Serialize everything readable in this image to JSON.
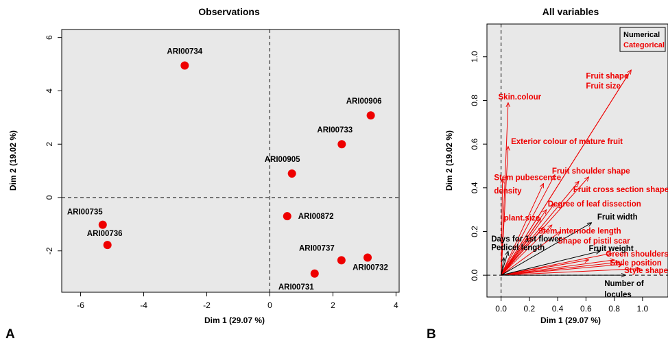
{
  "colors": {
    "panel_bg": "#e8e8e8",
    "point": "#ee0000",
    "numerical": "#000000",
    "categorical": "#ee0000"
  },
  "panel_letters": {
    "a": "A",
    "b": "B"
  },
  "chart_data": [
    {
      "type": "scatter",
      "title": "Observations",
      "xlabel": "Dim 1 (29.07 %)",
      "ylabel": "Dim 2 (19.02 %)",
      "xlim": [
        -6.6,
        4.1
      ],
      "ylim": [
        -3.55,
        6.3
      ],
      "xticks": [
        {
          "v": -6,
          "label": "-6"
        },
        {
          "v": -4,
          "label": "-4"
        },
        {
          "v": -2,
          "label": "-2"
        },
        {
          "v": 0,
          "label": "0"
        },
        {
          "v": 2,
          "label": "2"
        },
        {
          "v": 4,
          "label": "4"
        }
      ],
      "yticks": [
        {
          "v": -2,
          "label": "-2"
        },
        {
          "v": 0,
          "label": "0"
        },
        {
          "v": 2,
          "label": "2"
        },
        {
          "v": 4,
          "label": "4"
        },
        {
          "v": 6,
          "label": "6"
        }
      ],
      "points": [
        {
          "label": "ARI00734",
          "x": -2.7,
          "y": 4.95
        },
        {
          "label": "ARI00906",
          "x": 3.2,
          "y": 3.08
        },
        {
          "label": "ARI00733",
          "x": 2.28,
          "y": 2.0
        },
        {
          "label": "ARI00905",
          "x": 0.7,
          "y": 0.9
        },
        {
          "label": "ARI00872",
          "x": 0.55,
          "y": -0.7
        },
        {
          "label": "ARI00735",
          "x": -5.3,
          "y": -1.02
        },
        {
          "label": "ARI00736",
          "x": -5.15,
          "y": -1.78
        },
        {
          "label": "ARI00737",
          "x": 2.27,
          "y": -2.35
        },
        {
          "label": "ARI00732",
          "x": 3.1,
          "y": -2.25
        },
        {
          "label": "ARI00731",
          "x": 1.42,
          "y": -2.85
        }
      ]
    },
    {
      "type": "scatter",
      "title": "All variables",
      "xlabel": "Dim 1 (29.07 %)",
      "ylabel": "Dim 2 (19.02 %)",
      "xlim": [
        -0.1,
        1.18
      ],
      "ylim": [
        -0.1,
        1.15
      ],
      "xticks": [
        {
          "v": 0.0,
          "label": "0.0"
        },
        {
          "v": 0.2,
          "label": "0.2"
        },
        {
          "v": 0.4,
          "label": "0.4"
        },
        {
          "v": 0.6,
          "label": "0.6"
        },
        {
          "v": 0.8,
          "label": "0.8"
        },
        {
          "v": 1.0,
          "label": "1.0"
        }
      ],
      "yticks": [
        {
          "v": 0.0,
          "label": "0.0"
        },
        {
          "v": 0.2,
          "label": "0.2"
        },
        {
          "v": 0.4,
          "label": "0.4"
        },
        {
          "v": 0.6,
          "label": "0.6"
        },
        {
          "v": 0.8,
          "label": "0.8"
        },
        {
          "v": 1.0,
          "label": "1.0"
        }
      ],
      "legend": {
        "position": "top-right",
        "entries": [
          "Numerical",
          "Categorical"
        ]
      },
      "arrows": [
        {
          "kind": "categorical",
          "x": 0.92,
          "y": 0.94
        },
        {
          "kind": "categorical",
          "x": 0.9,
          "y": 0.92
        },
        {
          "kind": "categorical",
          "x": 0.05,
          "y": 0.79
        },
        {
          "kind": "categorical",
          "x": 0.05,
          "y": 0.59
        },
        {
          "kind": "categorical",
          "x": 0.01,
          "y": 0.44
        },
        {
          "kind": "categorical",
          "x": 0.38,
          "y": 0.46
        },
        {
          "kind": "categorical",
          "x": 0.3,
          "y": 0.42
        },
        {
          "kind": "categorical",
          "x": 0.62,
          "y": 0.45
        },
        {
          "kind": "categorical",
          "x": 0.55,
          "y": 0.43
        },
        {
          "kind": "categorical",
          "x": 0.38,
          "y": 0.33
        },
        {
          "kind": "categorical",
          "x": 0.32,
          "y": 0.3
        },
        {
          "kind": "categorical",
          "x": 0.28,
          "y": 0.26
        },
        {
          "kind": "categorical",
          "x": 0.36,
          "y": 0.23
        },
        {
          "kind": "categorical",
          "x": 0.3,
          "y": 0.22
        },
        {
          "kind": "categorical",
          "x": 0.42,
          "y": 0.2
        },
        {
          "kind": "categorical",
          "x": 0.2,
          "y": 0.17
        },
        {
          "kind": "categorical",
          "x": 0.78,
          "y": 0.1
        },
        {
          "kind": "categorical",
          "x": 0.8,
          "y": 0.07
        },
        {
          "kind": "categorical",
          "x": 0.84,
          "y": 0.06
        },
        {
          "kind": "categorical",
          "x": 0.86,
          "y": 0.05
        },
        {
          "kind": "categorical",
          "x": 0.98,
          "y": 0.03
        },
        {
          "kind": "categorical",
          "x": 0.62,
          "y": 0.07
        },
        {
          "kind": "numerical",
          "x": 0.64,
          "y": 0.24
        },
        {
          "kind": "numerical",
          "x": 0.7,
          "y": 0.11
        },
        {
          "kind": "numerical",
          "x": 0.05,
          "y": 0.11
        },
        {
          "kind": "numerical",
          "x": 0.02,
          "y": 0.08
        },
        {
          "kind": "numerical",
          "x": 0.88,
          "y": 0.0
        }
      ],
      "labels": [
        {
          "text": "Fruit shape",
          "kind": "categorical",
          "x": 0.6,
          "y": 0.9
        },
        {
          "text": "Fruit size",
          "kind": "categorical",
          "x": 0.6,
          "y": 0.855
        },
        {
          "text": "Skin.colour",
          "kind": "categorical",
          "x": -0.02,
          "y": 0.805
        },
        {
          "text": "Exterior colour of mature fruit",
          "kind": "categorical",
          "x": 0.07,
          "y": 0.6
        },
        {
          "text": "Stem pubescence",
          "kind": "categorical",
          "x": -0.05,
          "y": 0.435
        },
        {
          "text": "density",
          "kind": "categorical",
          "x": -0.05,
          "y": 0.375
        },
        {
          "text": "Fruit shoulder shape",
          "kind": "categorical",
          "x": 0.36,
          "y": 0.465
        },
        {
          "text": "Fruit cross section shape",
          "kind": "categorical",
          "x": 0.51,
          "y": 0.38
        },
        {
          "text": "Degree of leaf dissection",
          "kind": "categorical",
          "x": 0.33,
          "y": 0.315
        },
        {
          "text": "plant.size",
          "kind": "categorical",
          "x": 0.02,
          "y": 0.25
        },
        {
          "text": "Stem internode length",
          "kind": "categorical",
          "x": 0.26,
          "y": 0.19
        },
        {
          "text": "Shape of pistil scar",
          "kind": "categorical",
          "x": 0.4,
          "y": 0.145
        },
        {
          "text": "Green shoulders",
          "kind": "categorical",
          "x": 0.74,
          "y": 0.085
        },
        {
          "text": "Style position",
          "kind": "categorical",
          "x": 0.77,
          "y": 0.045
        },
        {
          "text": "Style shape",
          "kind": "categorical",
          "x": 0.87,
          "y": 0.01
        },
        {
          "text": "Fruit width",
          "kind": "numerical",
          "x": 0.68,
          "y": 0.255
        },
        {
          "text": "Days for 1st flower",
          "kind": "numerical",
          "x": -0.07,
          "y": 0.155
        },
        {
          "text": "Pedicel length",
          "kind": "numerical",
          "x": -0.07,
          "y": 0.115
        },
        {
          "text": "Fruit weight",
          "kind": "numerical",
          "x": 0.62,
          "y": 0.11
        },
        {
          "text": "Number of",
          "kind": "numerical",
          "x": 0.73,
          "y": -0.05
        },
        {
          "text": "locules",
          "kind": "numerical",
          "x": 0.73,
          "y": -0.1
        }
      ]
    }
  ]
}
